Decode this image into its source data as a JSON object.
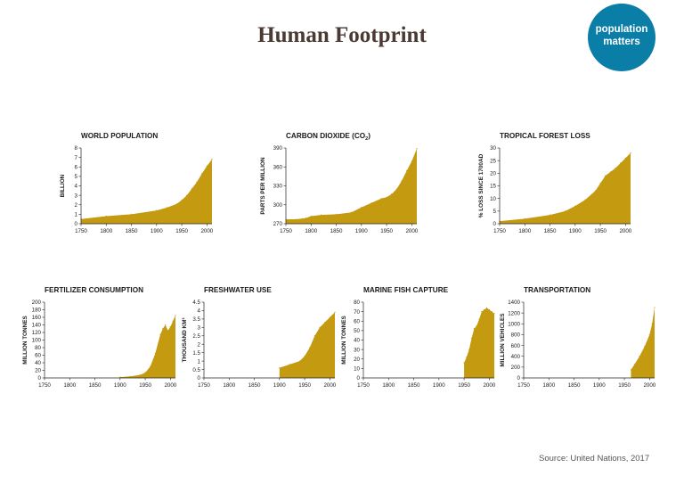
{
  "title": "Human Footprint",
  "logo": {
    "line1": "population",
    "line2": "matters",
    "color": "#0b7ea8",
    "text_color": "#ffffff"
  },
  "source": "Source: United Nations, 2017",
  "fill_color": "#c49a10",
  "chart_data": [
    {
      "type": "area",
      "title": "WORLD POPULATION",
      "ylabel": "BILLION",
      "xlim": [
        1750,
        2010
      ],
      "ylim": [
        0,
        8
      ],
      "xticks": [
        1750,
        1800,
        1850,
        1900,
        1950,
        2000
      ],
      "yticks": [
        0,
        1,
        2,
        3,
        4,
        5,
        6,
        7,
        8
      ],
      "x": [
        1750,
        1800,
        1850,
        1900,
        1920,
        1940,
        1950,
        1960,
        1970,
        1980,
        1990,
        2000,
        2010
      ],
      "values": [
        0.5,
        0.8,
        1.0,
        1.4,
        1.7,
        2.1,
        2.5,
        3.0,
        3.7,
        4.4,
        5.3,
        6.1,
        6.8
      ]
    },
    {
      "type": "area",
      "title": "CARBON DIOXIDE (CO",
      "title_sub": "2",
      "title_end": ")",
      "ylabel": "PARTS PER MILLION",
      "xlim": [
        1750,
        2010
      ],
      "ylim": [
        270,
        390
      ],
      "xticks": [
        1750,
        1800,
        1850,
        1900,
        1950,
        2000
      ],
      "yticks": [
        270,
        300,
        330,
        360,
        390
      ],
      "x": [
        1750,
        1770,
        1790,
        1800,
        1820,
        1850,
        1880,
        1900,
        1920,
        1940,
        1950,
        1960,
        1970,
        1980,
        1990,
        2000,
        2010
      ],
      "values": [
        277,
        277,
        279,
        282,
        284,
        285,
        288,
        296,
        303,
        310,
        312,
        317,
        325,
        338,
        354,
        369,
        389
      ]
    },
    {
      "type": "area",
      "title": "TROPICAL FOREST LOSS",
      "ylabel": "% LOSS SINCE 1700AD",
      "xlim": [
        1750,
        2010
      ],
      "ylim": [
        0,
        30
      ],
      "xticks": [
        1750,
        1800,
        1850,
        1900,
        1950,
        2000
      ],
      "yticks": [
        0,
        5,
        10,
        15,
        20,
        25,
        30
      ],
      "x": [
        1750,
        1800,
        1850,
        1880,
        1900,
        1920,
        1940,
        1950,
        1960,
        1970,
        1980,
        1990,
        2000,
        2010
      ],
      "values": [
        1,
        2,
        3.5,
        5,
        7,
        9.5,
        13,
        16,
        19,
        20.5,
        22,
        24,
        26,
        28
      ]
    },
    {
      "type": "area",
      "title": "FERTILIZER CONSUMPTION",
      "ylabel": "MILLION TONNES",
      "xlim": [
        1750,
        2010
      ],
      "ylim": [
        0,
        200
      ],
      "xticks": [
        1750,
        1800,
        1850,
        1900,
        1950,
        2000
      ],
      "yticks": [
        0,
        20,
        40,
        60,
        80,
        100,
        120,
        140,
        160,
        180,
        200
      ],
      "x": [
        1900,
        1920,
        1940,
        1950,
        1960,
        1970,
        1980,
        1985,
        1990,
        1995,
        2000,
        2005,
        2010
      ],
      "values": [
        2,
        4,
        8,
        14,
        30,
        65,
        115,
        130,
        140,
        125,
        135,
        150,
        165
      ]
    },
    {
      "type": "area",
      "title": "FRESHWATER USE",
      "ylabel": "THOUSAND KM³",
      "xlim": [
        1750,
        2010
      ],
      "ylim": [
        0,
        4.5
      ],
      "xticks": [
        1750,
        1800,
        1850,
        1900,
        1950,
        2000
      ],
      "yticks": [
        0,
        0.5,
        1,
        1.5,
        2,
        2.5,
        3,
        3.5,
        4,
        4.5
      ],
      "x": [
        1900,
        1920,
        1940,
        1950,
        1960,
        1970,
        1980,
        1990,
        2000,
        2010
      ],
      "values": [
        0.6,
        0.8,
        1.0,
        1.3,
        1.8,
        2.5,
        3.0,
        3.3,
        3.6,
        3.9
      ]
    },
    {
      "type": "area",
      "title": "MARINE FISH CAPTURE",
      "ylabel": "MILLION TONNES",
      "xlim": [
        1750,
        2010
      ],
      "ylim": [
        0,
        80
      ],
      "xticks": [
        1750,
        1800,
        1850,
        1900,
        1950,
        2000
      ],
      "yticks": [
        0,
        10,
        20,
        30,
        40,
        50,
        60,
        70,
        80
      ],
      "x": [
        1950,
        1955,
        1960,
        1965,
        1970,
        1975,
        1980,
        1985,
        1990,
        1995,
        2000,
        2005,
        2010
      ],
      "values": [
        16,
        22,
        30,
        42,
        52,
        55,
        62,
        70,
        72,
        74,
        72,
        70,
        68
      ]
    },
    {
      "type": "area",
      "title": "TRANSPORTATION",
      "ylabel": "MILLION VEHICLES",
      "xlim": [
        1750,
        2010
      ],
      "ylim": [
        0,
        1400
      ],
      "xticks": [
        1750,
        1800,
        1850,
        1900,
        1950,
        2000
      ],
      "yticks": [
        0,
        200,
        400,
        600,
        800,
        1000,
        1200,
        1400
      ],
      "x": [
        1963,
        1970,
        1980,
        1990,
        2000,
        2005,
        2010
      ],
      "values": [
        150,
        250,
        400,
        580,
        800,
        1000,
        1300
      ]
    }
  ]
}
